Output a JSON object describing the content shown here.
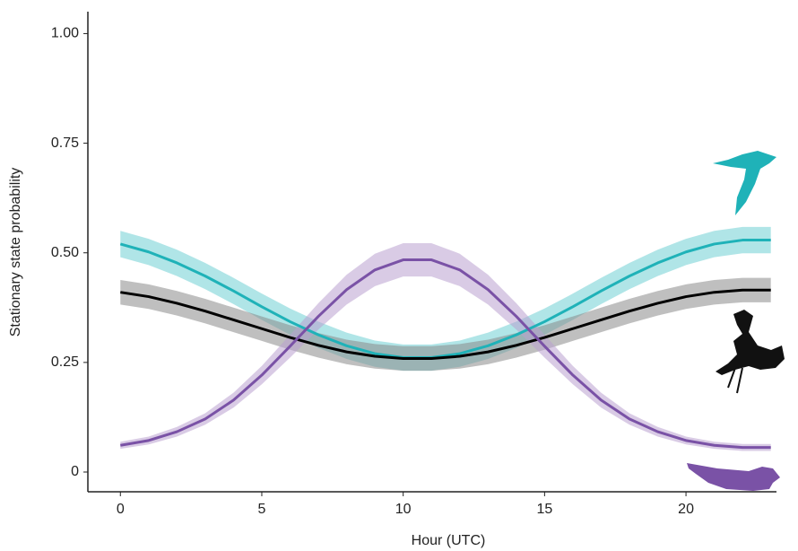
{
  "chart_data": {
    "type": "line",
    "xlabel": "Hour (UTC)",
    "ylabel": "Stationary state probability",
    "x": [
      0,
      1,
      2,
      3,
      4,
      5,
      6,
      7,
      8,
      9,
      10,
      11,
      12,
      13,
      14,
      15,
      16,
      17,
      18,
      19,
      20,
      21,
      22,
      23
    ],
    "xlim": [
      -1.15,
      23.2
    ],
    "xticks": [
      0,
      5,
      10,
      15,
      20
    ],
    "ylim": [
      -0.045,
      1.05
    ],
    "yticks": [
      0,
      0.25,
      {
        "value": 0.5,
        "label": "0.50"
      },
      {
        "value": 0.75,
        "label": "0.75"
      },
      {
        "value": 1,
        "label": "1.00"
      }
    ],
    "series": [
      {
        "color": "#1fb2b8",
        "band_color": "#6fcfd3",
        "values": [
          0.52,
          0.502,
          0.477,
          0.447,
          0.413,
          0.377,
          0.343,
          0.313,
          0.288,
          0.27,
          0.261,
          0.261,
          0.27,
          0.288,
          0.313,
          0.343,
          0.377,
          0.413,
          0.447,
          0.477,
          0.502,
          0.52,
          0.529,
          0.529
        ],
        "lower": [
          0.49,
          0.472,
          0.447,
          0.417,
          0.383,
          0.347,
          0.313,
          0.283,
          0.258,
          0.24,
          0.231,
          0.231,
          0.24,
          0.258,
          0.283,
          0.313,
          0.347,
          0.383,
          0.417,
          0.447,
          0.472,
          0.49,
          0.499,
          0.499
        ],
        "upper": [
          0.55,
          0.532,
          0.507,
          0.477,
          0.443,
          0.407,
          0.373,
          0.343,
          0.318,
          0.3,
          0.291,
          0.291,
          0.3,
          0.318,
          0.343,
          0.373,
          0.407,
          0.443,
          0.477,
          0.507,
          0.532,
          0.55,
          0.559,
          0.559
        ]
      },
      {
        "color": "#000000",
        "band_color": "#8a8a8a",
        "values": [
          0.41,
          0.4,
          0.385,
          0.367,
          0.347,
          0.327,
          0.307,
          0.289,
          0.274,
          0.264,
          0.259,
          0.259,
          0.264,
          0.274,
          0.289,
          0.307,
          0.327,
          0.347,
          0.367,
          0.385,
          0.4,
          0.41,
          0.415,
          0.415
        ],
        "lower": [
          0.382,
          0.372,
          0.357,
          0.339,
          0.319,
          0.299,
          0.279,
          0.261,
          0.246,
          0.236,
          0.231,
          0.231,
          0.236,
          0.246,
          0.261,
          0.279,
          0.299,
          0.319,
          0.339,
          0.357,
          0.372,
          0.382,
          0.387,
          0.387
        ],
        "upper": [
          0.438,
          0.428,
          0.413,
          0.395,
          0.375,
          0.355,
          0.335,
          0.317,
          0.302,
          0.292,
          0.287,
          0.287,
          0.292,
          0.302,
          0.317,
          0.335,
          0.355,
          0.375,
          0.395,
          0.413,
          0.428,
          0.438,
          0.443,
          0.443
        ]
      },
      {
        "color": "#7a52a6",
        "band_color": "#b9a0d0",
        "values": [
          0.061,
          0.072,
          0.092,
          0.121,
          0.164,
          0.221,
          0.287,
          0.355,
          0.416,
          0.461,
          0.484,
          0.484,
          0.461,
          0.416,
          0.355,
          0.287,
          0.221,
          0.164,
          0.121,
          0.092,
          0.072,
          0.061,
          0.056,
          0.056
        ],
        "lower": [
          0.053,
          0.063,
          0.081,
          0.108,
          0.147,
          0.2,
          0.261,
          0.325,
          0.382,
          0.424,
          0.446,
          0.446,
          0.424,
          0.382,
          0.325,
          0.261,
          0.2,
          0.147,
          0.108,
          0.081,
          0.063,
          0.053,
          0.048,
          0.048
        ],
        "upper": [
          0.069,
          0.081,
          0.103,
          0.134,
          0.181,
          0.242,
          0.313,
          0.385,
          0.45,
          0.498,
          0.522,
          0.522,
          0.498,
          0.45,
          0.385,
          0.313,
          0.242,
          0.181,
          0.134,
          0.103,
          0.081,
          0.069,
          0.064,
          0.064
        ]
      }
    ]
  }
}
